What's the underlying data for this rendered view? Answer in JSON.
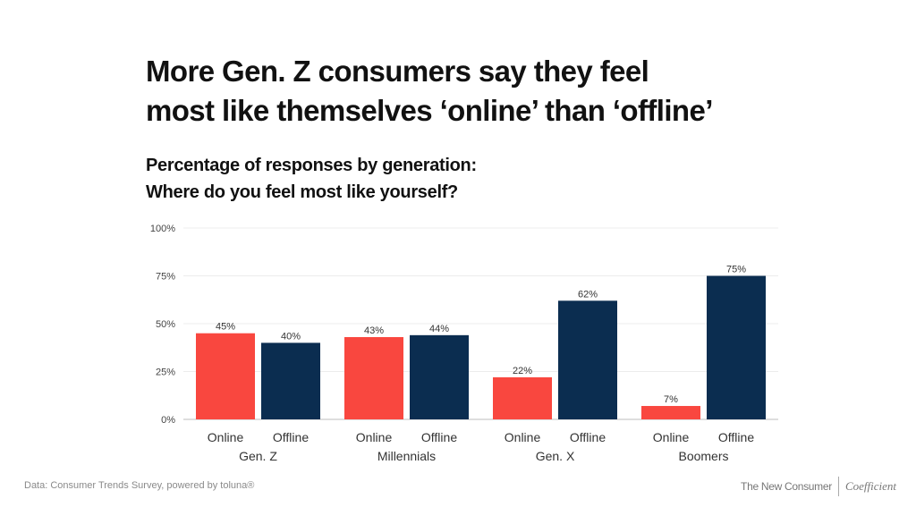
{
  "title_lines": [
    "More Gen. Z consumers say they feel",
    "most like themselves ‘online’ than ‘offline’"
  ],
  "subtitle_lines": [
    "Percentage of responses by generation:",
    "Where do you feel most like yourself?"
  ],
  "footer": {
    "source": "Data: Consumer Trends Survey, powered by toluna®",
    "brand_primary": "The New Consumer",
    "brand_secondary": "Coefficient"
  },
  "chart_data": {
    "type": "bar",
    "title": "More Gen. Z consumers say they feel most like themselves ‘online’ than ‘offline’",
    "subtitle": "Percentage of responses by generation: Where do you feel most like yourself?",
    "categories": [
      "Gen. Z",
      "Millennials",
      "Gen. X",
      "Boomers"
    ],
    "series": [
      {
        "name": "Online",
        "color": "#f9473f",
        "values": [
          45,
          43,
          22,
          7
        ]
      },
      {
        "name": "Offline",
        "color": "#0b2d50",
        "values": [
          40,
          44,
          62,
          75
        ]
      }
    ],
    "value_labels": {
      "Online": [
        "45%",
        "43%",
        "22%",
        "7%"
      ],
      "Offline": [
        "40%",
        "44%",
        "62%",
        "75%"
      ]
    },
    "xlabel": "",
    "ylabel": "",
    "ylim": [
      0,
      100
    ],
    "yticks": [
      0,
      25,
      50,
      75,
      100
    ],
    "ytick_labels": [
      "0%",
      "25%",
      "50%",
      "75%",
      "100%"
    ],
    "grid": true,
    "legend": "none (series named under each bar)"
  }
}
